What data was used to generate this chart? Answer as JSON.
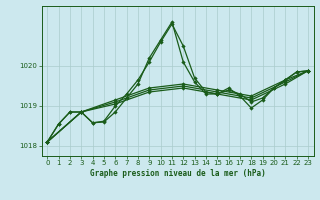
{
  "title": "Graphe pression niveau de la mer (hPa)",
  "background_color": "#cce8ee",
  "grid_color": "#aacccc",
  "line_color": "#1a5c1a",
  "xlim": [
    -0.5,
    23.5
  ],
  "ylim": [
    1017.75,
    1021.5
  ],
  "yticks": [
    1018,
    1019,
    1020
  ],
  "xticks": [
    0,
    1,
    2,
    3,
    4,
    5,
    6,
    7,
    8,
    9,
    10,
    11,
    12,
    13,
    14,
    15,
    16,
    17,
    18,
    19,
    20,
    21,
    22,
    23
  ],
  "spiky_x": [
    0,
    1,
    2,
    3,
    4,
    5,
    6,
    7,
    8,
    9,
    10,
    11,
    12,
    13,
    14,
    15,
    16,
    17,
    18,
    19,
    20,
    21,
    22,
    23
  ],
  "spiky_y": [
    1018.1,
    1018.55,
    1018.85,
    1018.85,
    1018.58,
    1018.6,
    1018.85,
    1019.2,
    1019.55,
    1020.2,
    1020.65,
    1021.1,
    1020.1,
    1019.6,
    1019.3,
    1019.3,
    1019.45,
    1019.25,
    1018.95,
    1019.15,
    1019.45,
    1019.65,
    1019.85,
    1019.88
  ],
  "flat1_x": [
    0,
    3,
    6,
    9,
    12,
    15,
    18,
    21,
    23
  ],
  "flat1_y": [
    1018.1,
    1018.85,
    1019.05,
    1019.35,
    1019.45,
    1019.3,
    1019.15,
    1019.55,
    1019.88
  ],
  "flat2_x": [
    0,
    3,
    6,
    9,
    12,
    15,
    18,
    21,
    23
  ],
  "flat2_y": [
    1018.1,
    1018.85,
    1019.1,
    1019.4,
    1019.5,
    1019.35,
    1019.2,
    1019.6,
    1019.88
  ],
  "flat3_x": [
    0,
    3,
    6,
    9,
    12,
    15,
    18,
    21,
    23
  ],
  "flat3_y": [
    1018.1,
    1018.85,
    1019.15,
    1019.45,
    1019.55,
    1019.4,
    1019.25,
    1019.65,
    1019.88
  ],
  "curve1_x": [
    0,
    1,
    2,
    3,
    4,
    5,
    6,
    7,
    8,
    9,
    10,
    11,
    12,
    13,
    14,
    15,
    16,
    17,
    18,
    19,
    20,
    21,
    22,
    23
  ],
  "curve1_y": [
    1018.1,
    1018.55,
    1018.85,
    1018.85,
    1018.58,
    1018.62,
    1019.0,
    1019.3,
    1019.65,
    1020.1,
    1020.6,
    1021.05,
    1020.5,
    1019.7,
    1019.35,
    1019.3,
    1019.4,
    1019.3,
    1019.1,
    1019.2,
    1019.45,
    1019.65,
    1019.85,
    1019.88
  ]
}
